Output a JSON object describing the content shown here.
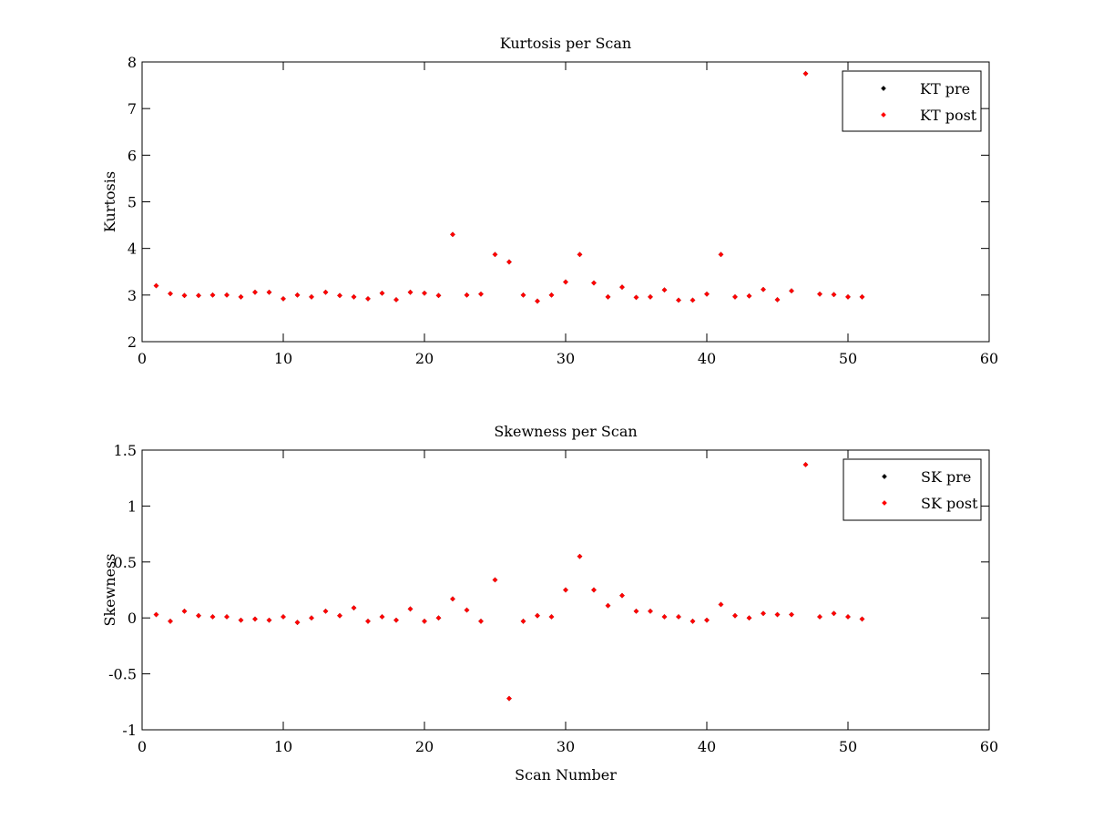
{
  "chart_data": [
    {
      "type": "scatter",
      "title": "Kurtosis per Scan",
      "xlabel": "",
      "ylabel": "Kurtosis",
      "xlim": [
        0,
        60
      ],
      "ylim": [
        2,
        8
      ],
      "xticks": [
        0,
        10,
        20,
        30,
        40,
        50,
        60
      ],
      "yticks": [
        2,
        3,
        4,
        5,
        6,
        7,
        8
      ],
      "grid": false,
      "legend_position": "top-right",
      "x": [
        1,
        2,
        3,
        4,
        5,
        6,
        7,
        8,
        9,
        10,
        11,
        12,
        13,
        14,
        15,
        16,
        17,
        18,
        19,
        20,
        21,
        22,
        23,
        24,
        25,
        26,
        27,
        28,
        29,
        30,
        31,
        32,
        33,
        34,
        35,
        36,
        37,
        38,
        39,
        40,
        41,
        42,
        43,
        44,
        45,
        46,
        47,
        48,
        49,
        50,
        51
      ],
      "series": [
        {
          "name": "KT pre",
          "color": "#000000",
          "values": [
            3.2,
            3.03,
            2.99,
            2.99,
            3.0,
            3.0,
            2.96,
            3.06,
            3.06,
            2.92,
            3.0,
            2.96,
            3.06,
            2.99,
            2.96,
            2.92,
            3.04,
            2.9,
            3.06,
            3.04,
            2.99,
            4.3,
            3.0,
            3.02,
            3.87,
            3.71,
            3.0,
            2.87,
            3.0,
            3.28,
            3.87,
            3.26,
            2.96,
            3.17,
            2.95,
            2.96,
            3.11,
            2.89,
            2.89,
            3.02,
            3.87,
            2.96,
            2.98,
            3.12,
            2.9,
            3.09,
            7.75,
            3.02,
            3.01,
            2.96,
            2.96
          ]
        },
        {
          "name": "KT post",
          "color": "#ff0000",
          "values": [
            3.2,
            3.03,
            2.99,
            2.99,
            3.0,
            3.0,
            2.96,
            3.06,
            3.06,
            2.92,
            3.0,
            2.96,
            3.06,
            2.99,
            2.96,
            2.92,
            3.04,
            2.9,
            3.06,
            3.04,
            2.99,
            4.3,
            3.0,
            3.02,
            3.87,
            3.71,
            3.0,
            2.87,
            3.0,
            3.28,
            3.87,
            3.26,
            2.96,
            3.17,
            2.95,
            2.96,
            3.11,
            2.89,
            2.89,
            3.02,
            3.87,
            2.96,
            2.98,
            3.12,
            2.9,
            3.09,
            7.75,
            3.02,
            3.01,
            2.96,
            2.96
          ]
        }
      ]
    },
    {
      "type": "scatter",
      "title": "Skewness per Scan",
      "xlabel": "Scan Number",
      "ylabel": "Skewness",
      "xlim": [
        0,
        60
      ],
      "ylim": [
        -1,
        1.5
      ],
      "xticks": [
        0,
        10,
        20,
        30,
        40,
        50,
        60
      ],
      "yticks": [
        -1,
        -0.5,
        0,
        0.5,
        1,
        1.5
      ],
      "grid": false,
      "legend_position": "top-right",
      "x": [
        1,
        2,
        3,
        4,
        5,
        6,
        7,
        8,
        9,
        10,
        11,
        12,
        13,
        14,
        15,
        16,
        17,
        18,
        19,
        20,
        21,
        22,
        23,
        24,
        25,
        26,
        27,
        28,
        29,
        30,
        31,
        32,
        33,
        34,
        35,
        36,
        37,
        38,
        39,
        40,
        41,
        42,
        43,
        44,
        45,
        46,
        47,
        48,
        49,
        50,
        51
      ],
      "series": [
        {
          "name": "SK pre",
          "color": "#000000",
          "values": [
            0.03,
            -0.03,
            0.06,
            0.02,
            0.01,
            0.01,
            -0.02,
            -0.01,
            -0.02,
            0.01,
            -0.04,
            0.0,
            0.06,
            0.02,
            0.09,
            -0.03,
            0.01,
            -0.02,
            0.08,
            -0.03,
            0.0,
            0.17,
            0.07,
            -0.03,
            0.34,
            -0.72,
            -0.03,
            0.02,
            0.01,
            0.25,
            0.55,
            0.25,
            0.11,
            0.2,
            0.06,
            0.06,
            0.01,
            0.01,
            -0.03,
            -0.02,
            0.12,
            0.02,
            0.0,
            0.04,
            0.03,
            0.03,
            1.37,
            0.01,
            0.04,
            0.01,
            -0.01
          ]
        },
        {
          "name": "SK post",
          "color": "#ff0000",
          "values": [
            0.03,
            -0.03,
            0.06,
            0.02,
            0.01,
            0.01,
            -0.02,
            -0.01,
            -0.02,
            0.01,
            -0.04,
            0.0,
            0.06,
            0.02,
            0.09,
            -0.03,
            0.01,
            -0.02,
            0.08,
            -0.03,
            0.0,
            0.17,
            0.07,
            -0.03,
            0.34,
            -0.72,
            -0.03,
            0.02,
            0.01,
            0.25,
            0.55,
            0.25,
            0.11,
            0.2,
            0.06,
            0.06,
            0.01,
            0.01,
            -0.03,
            -0.02,
            0.12,
            0.02,
            0.0,
            0.04,
            0.03,
            0.03,
            1.37,
            0.01,
            0.04,
            0.01,
            -0.01
          ]
        }
      ]
    }
  ]
}
